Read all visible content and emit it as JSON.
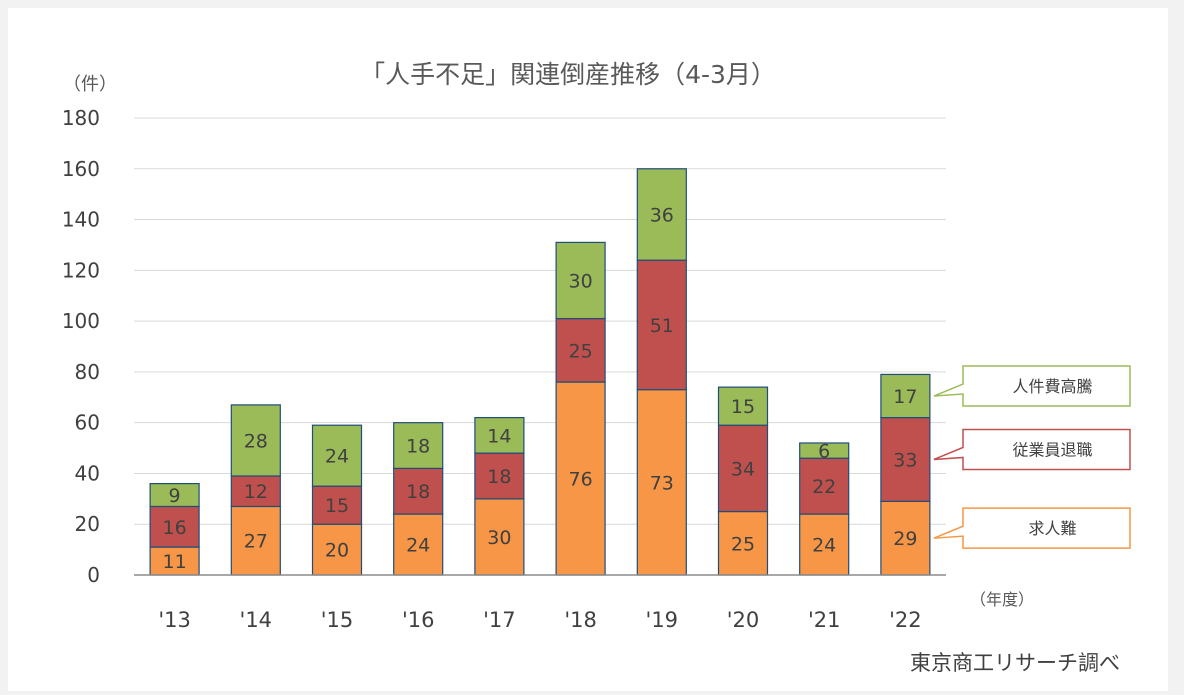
{
  "chart_data": {
    "type": "bar",
    "stacked": true,
    "title": "「人手不足」関連倒産推移（4-3月）",
    "ylabel": "（件）",
    "xlabel": "（年度）",
    "ylim": [
      0,
      180
    ],
    "yticks": [
      "0",
      "20",
      "40",
      "60",
      "80",
      "100",
      "120",
      "140",
      "160",
      "180"
    ],
    "grid": true,
    "categories": [
      "'13",
      "'14",
      "'15",
      "'16",
      "'17",
      "'18",
      "'19",
      "'20",
      "'21",
      "'22"
    ],
    "series": [
      {
        "name": "求人難",
        "color": "#f79646",
        "values": [
          11,
          27,
          20,
          24,
          30,
          76,
          73,
          25,
          24,
          29
        ]
      },
      {
        "name": "従業員退職",
        "color": "#c0504d",
        "values": [
          16,
          12,
          15,
          18,
          18,
          25,
          51,
          34,
          22,
          33
        ]
      },
      {
        "name": "人件費高騰",
        "color": "#9bbb59",
        "values": [
          9,
          28,
          24,
          18,
          14,
          30,
          36,
          15,
          6,
          17
        ]
      }
    ],
    "legend_placement": "right",
    "source": "東京商工リサーチ調べ"
  }
}
